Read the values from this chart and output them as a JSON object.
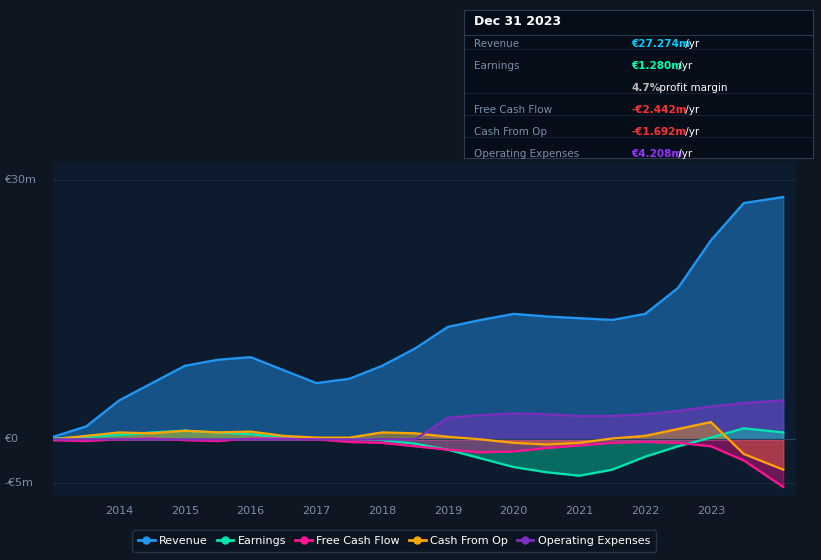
{
  "bg_color": "#0e1621",
  "plot_bg_color": "#0d1b2e",
  "grid_color": "#1a2d45",
  "years": [
    2013.0,
    2013.5,
    2014.0,
    2014.5,
    2015.0,
    2015.5,
    2016.0,
    2016.5,
    2017.0,
    2017.5,
    2018.0,
    2018.5,
    2019.0,
    2019.5,
    2020.0,
    2020.5,
    2021.0,
    2021.5,
    2022.0,
    2022.5,
    2023.0,
    2023.5,
    2024.1
  ],
  "revenue": [
    0.3,
    1.5,
    4.5,
    6.5,
    8.5,
    9.2,
    9.5,
    8.0,
    6.5,
    7.0,
    8.5,
    10.5,
    13.0,
    13.8,
    14.5,
    14.2,
    14.0,
    13.8,
    14.5,
    17.5,
    23.0,
    27.3,
    28.0
  ],
  "earnings": [
    0.1,
    0.3,
    0.5,
    0.8,
    1.0,
    0.8,
    0.6,
    0.2,
    0.1,
    0.1,
    -0.1,
    -0.5,
    -1.2,
    -2.2,
    -3.2,
    -3.8,
    -4.2,
    -3.5,
    -2.0,
    -0.8,
    0.2,
    1.28,
    0.8
  ],
  "fcf": [
    -0.1,
    -0.2,
    0.0,
    0.1,
    -0.1,
    -0.2,
    0.1,
    0.1,
    0.0,
    -0.3,
    -0.4,
    -0.8,
    -1.2,
    -1.5,
    -1.4,
    -1.0,
    -0.7,
    -0.4,
    -0.3,
    -0.4,
    -0.8,
    -2.44,
    -5.5
  ],
  "cashfromop": [
    0.0,
    0.4,
    0.8,
    0.7,
    1.0,
    0.8,
    0.9,
    0.4,
    0.2,
    0.2,
    0.8,
    0.7,
    0.3,
    0.0,
    -0.4,
    -0.6,
    -0.4,
    0.1,
    0.4,
    1.2,
    2.0,
    -1.69,
    -3.5
  ],
  "opex": [
    0.0,
    0.0,
    0.0,
    0.0,
    0.0,
    0.0,
    0.0,
    0.0,
    0.0,
    0.0,
    0.0,
    0.0,
    2.5,
    2.8,
    3.0,
    2.9,
    2.7,
    2.7,
    2.9,
    3.3,
    3.8,
    4.208,
    4.5
  ],
  "ylim": [
    -6.5,
    32
  ],
  "xlim": [
    2013.0,
    2024.3
  ],
  "ytick_positions": [
    -5,
    0,
    30
  ],
  "ytick_labels": [
    "-€5m",
    "€0",
    "€30m"
  ],
  "xticks": [
    2014,
    2015,
    2016,
    2017,
    2018,
    2019,
    2020,
    2021,
    2022,
    2023
  ],
  "revenue_color": "#2196f3",
  "earnings_color": "#00e5b0",
  "fcf_color": "#ff1493",
  "cashfromop_color": "#ffa500",
  "opex_color": "#7b2fbe",
  "fill_alpha": 0.4,
  "line_width": 1.6,
  "legend_labels": [
    "Revenue",
    "Earnings",
    "Free Cash Flow",
    "Cash From Op",
    "Operating Expenses"
  ],
  "info_box": {
    "date": "Dec 31 2023",
    "rows": [
      {
        "label": "Revenue",
        "value": "€27.274m",
        "suffix": " /yr",
        "vcolor": "#00ccff"
      },
      {
        "label": "Earnings",
        "value": "€1.280m",
        "suffix": " /yr",
        "vcolor": "#00ffaa"
      },
      {
        "label": "",
        "value": "4.7%",
        "suffix": " profit margin",
        "vcolor": "#bbbbbb"
      },
      {
        "label": "Free Cash Flow",
        "value": "-€2.442m",
        "suffix": " /yr",
        "vcolor": "#ff3333"
      },
      {
        "label": "Cash From Op",
        "value": "-€1.692m",
        "suffix": " /yr",
        "vcolor": "#ff3333"
      },
      {
        "label": "Operating Expenses",
        "value": "€4.208m",
        "suffix": " /yr",
        "vcolor": "#9933ff"
      }
    ]
  }
}
